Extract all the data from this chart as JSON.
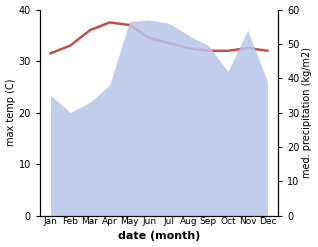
{
  "months": [
    "Jan",
    "Feb",
    "Mar",
    "Apr",
    "May",
    "Jun",
    "Jul",
    "Aug",
    "Sep",
    "Oct",
    "Nov",
    "Dec"
  ],
  "temp": [
    31.5,
    33.0,
    36.0,
    37.5,
    37.0,
    34.5,
    33.5,
    32.5,
    32.0,
    32.0,
    32.5,
    32.0
  ],
  "precip": [
    35.0,
    30.0,
    33.0,
    38.0,
    56.5,
    57.0,
    56.0,
    52.5,
    49.5,
    42.0,
    54.0,
    39.0
  ],
  "temp_color": "#c0504d",
  "precip_fill_color": "#b8c4e8",
  "precip_fill_alpha": 0.85,
  "xlabel": "date (month)",
  "ylabel_left": "max temp (C)",
  "ylabel_right": "med. precipitation (kg/m2)",
  "ylim_left": [
    0,
    40
  ],
  "ylim_right": [
    0,
    60
  ],
  "yticks_left": [
    0,
    10,
    20,
    30,
    40
  ],
  "yticks_right": [
    0,
    10,
    20,
    30,
    40,
    50,
    60
  ],
  "background_color": "#ffffff"
}
